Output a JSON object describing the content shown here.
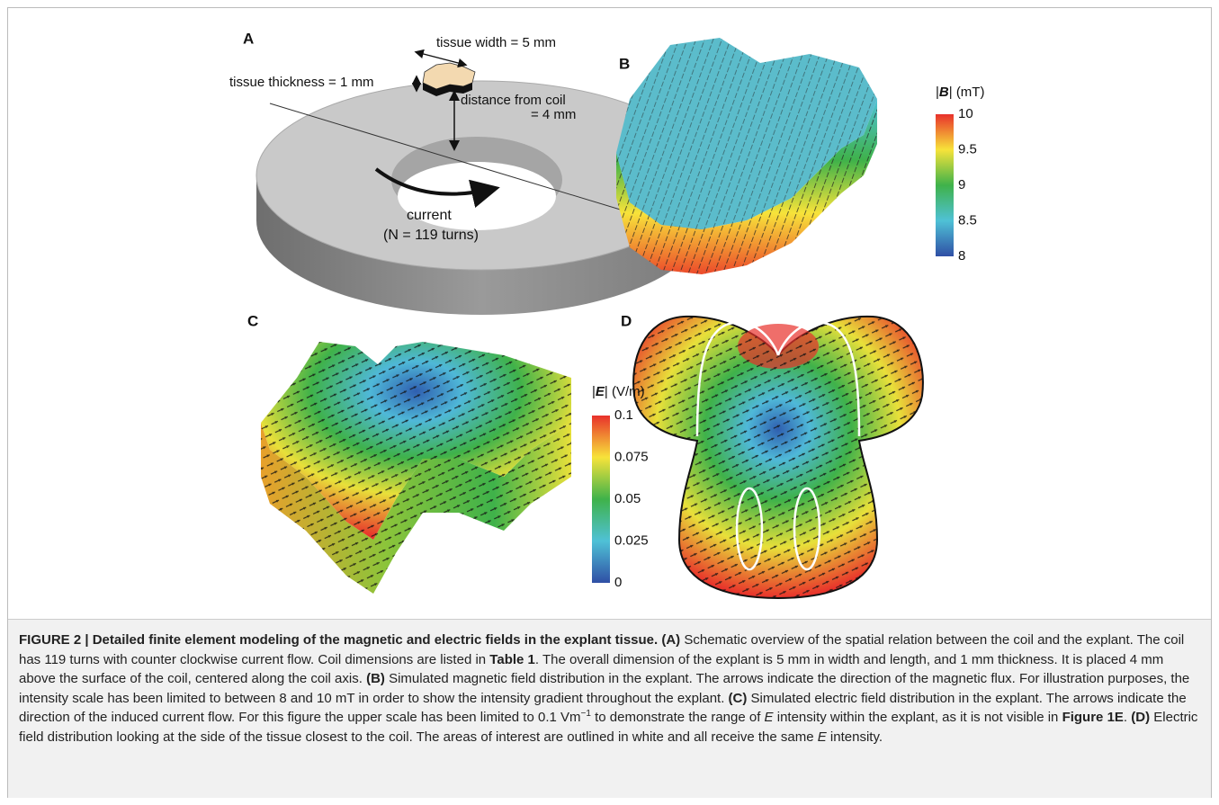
{
  "panels": [
    {
      "label": "A"
    },
    {
      "label": "B"
    },
    {
      "label": "C"
    },
    {
      "label": "D"
    }
  ],
  "annotations": {
    "tissue_width": "tissue width = 5 mm",
    "tissue_thickness": "tissue thickness = 1 mm",
    "distance_line1": "distance from coil",
    "distance_line2": "= 4 mm",
    "current": "current",
    "turns": "(N = 119 turns)"
  },
  "colorbars": [
    {
      "title": [
        {
          "text": "|"
        },
        {
          "text": "B",
          "style": "bold-italic"
        },
        {
          "text": "| (mT)"
        }
      ],
      "ticks": [
        "10",
        "9.5",
        "9",
        "8.5",
        "8"
      ]
    },
    {
      "title": [
        {
          "text": "|"
        },
        {
          "text": "E",
          "style": "bold-italic"
        },
        {
          "text": "| (V/m)"
        }
      ],
      "ticks": [
        "0.1",
        "0.075",
        "0.05",
        "0.025",
        "0"
      ]
    }
  ],
  "caption": [
    {
      "text": "FIGURE 2 | Detailed finite element modeling of the magnetic and electric fields in the explant tissue. ",
      "style": "bold"
    },
    {
      "text": "(A)",
      "style": "bold"
    },
    {
      "text": " Schematic overview of the spatial relation between the coil and the explant. The coil has 119 turns with counter clockwise current flow. Coil dimensions are listed in "
    },
    {
      "text": "Table 1",
      "style": "bold"
    },
    {
      "text": ". The overall dimension of the explant is 5 mm in width and length, and 1 mm thickness. It is placed 4 mm above the surface of the coil, centered along the coil axis. "
    },
    {
      "text": "(B)",
      "style": "bold"
    },
    {
      "text": " Simulated magnetic field distribution in the explant. The arrows indicate the direction of the magnetic flux. For illustration purposes, the intensity scale has been limited to between 8 and 10 mT in order to show the intensity gradient throughout the explant. "
    },
    {
      "text": "(C)",
      "style": "bold"
    },
    {
      "text": " Simulated electric field distribution in the explant. The arrows indicate the direction of the induced current flow. For this figure the upper scale has been limited to 0.1 Vm"
    },
    {
      "text": "−1",
      "style": "sup"
    },
    {
      "text": " to demonstrate the range of "
    },
    {
      "text": "E",
      "style": "italic"
    },
    {
      "text": " intensity within the explant, as it is not visible in "
    },
    {
      "text": "Figure 1E",
      "style": "bold"
    },
    {
      "text": ". "
    },
    {
      "text": "(D)",
      "style": "bold"
    },
    {
      "text": " Electric field distribution looking at the side of the tissue closest to the coil. The areas of interest are outlined in white and all receive the same "
    },
    {
      "text": "E",
      "style": "italic"
    },
    {
      "text": " intensity."
    }
  ]
}
